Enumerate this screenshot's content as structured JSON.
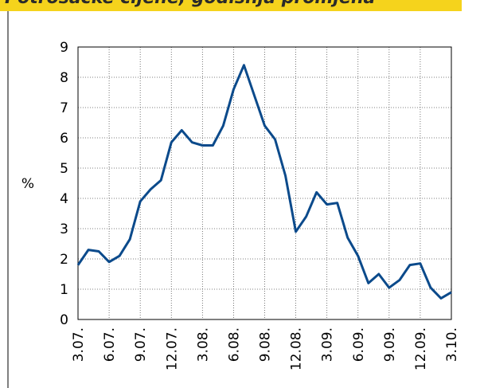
{
  "chart_data": {
    "type": "line",
    "title": "Potrošačke cijene, godišnja promjena",
    "y_label": "%",
    "categories": [
      "3.07.",
      null,
      null,
      "6.07.",
      null,
      null,
      "9.07.",
      null,
      null,
      "12.07.",
      null,
      null,
      "3.08.",
      null,
      null,
      "6.08.",
      null,
      null,
      "9.08.",
      null,
      null,
      "12.08.",
      null,
      null,
      "3.09.",
      null,
      null,
      "6.09.",
      null,
      null,
      "9.09.",
      null,
      null,
      "12.09.",
      null,
      null,
      "3.10."
    ],
    "series": [
      {
        "color": "#0b4a8b",
        "values": [
          1.8,
          2.3,
          2.25,
          1.9,
          2.1,
          2.65,
          3.9,
          4.3,
          4.6,
          5.85,
          6.25,
          5.85,
          5.75,
          5.75,
          6.4,
          7.6,
          8.4,
          7.4,
          6.4,
          5.95,
          4.75,
          2.9,
          3.4,
          4.2,
          3.8,
          3.85,
          2.7,
          2.1,
          1.2,
          1.5,
          1.05,
          1.3,
          1.8,
          1.85,
          1.05,
          0.7,
          0.9
        ]
      }
    ],
    "ylim": [
      0,
      9
    ],
    "yticks": [
      0,
      1,
      2,
      3,
      4,
      5,
      6,
      7,
      8,
      9
    ],
    "grid": true
  }
}
